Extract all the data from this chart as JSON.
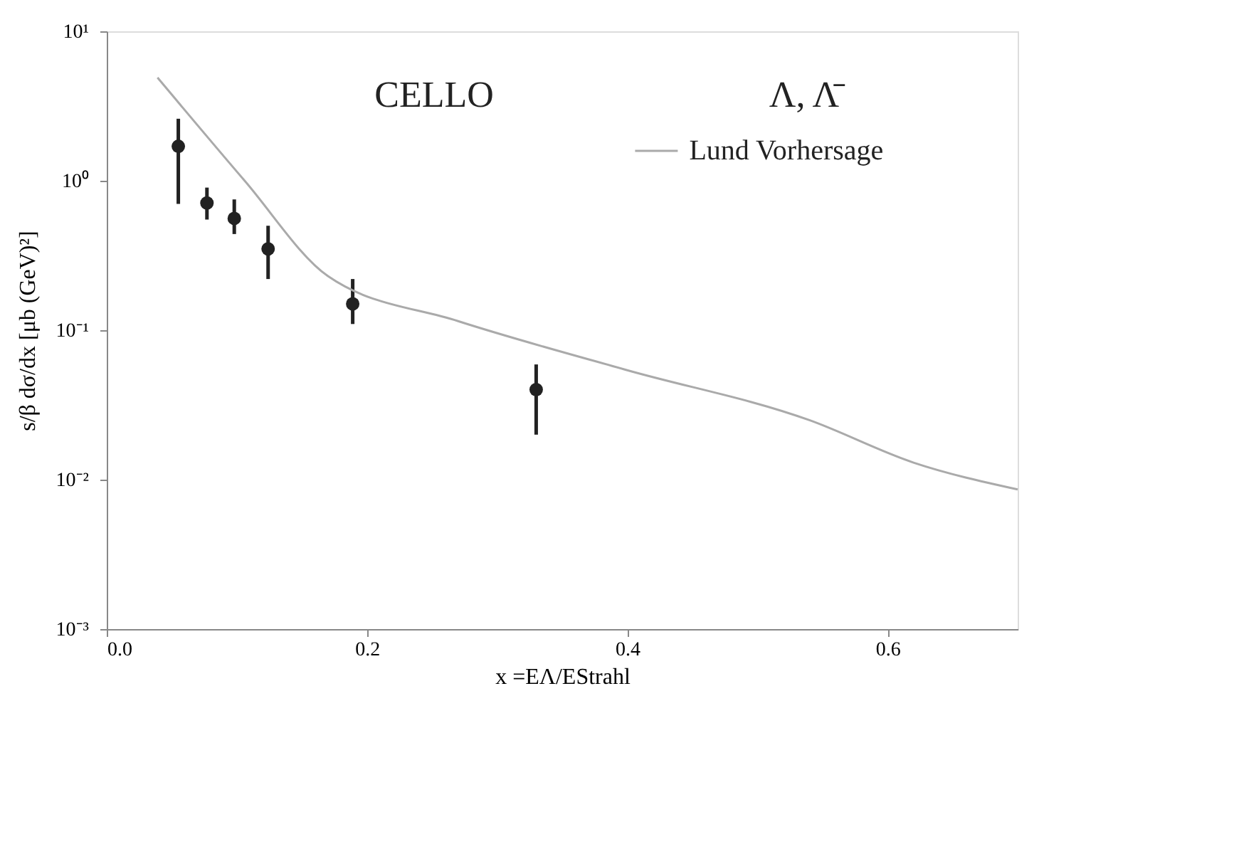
{
  "chart_data": {
    "type": "scatter",
    "xlabel": "x =EΛ/EStrahl",
    "ylabel": "s/β dσ/dx  [μb (GeV)²]",
    "annotations": [
      "CELLO",
      "Λ,  Λ̄"
    ],
    "xlim": [
      0,
      0.7
    ],
    "xticks": [
      {
        "value": 0,
        "label": "0.0"
      },
      0.2,
      0.4,
      0.6
    ],
    "ylim": [
      0.001,
      10
    ],
    "log": true,
    "yticks": [
      {
        "value": 0.001,
        "label": "10⁻³"
      },
      {
        "value": 0.01,
        "label": "10⁻²"
      },
      {
        "value": 0.1,
        "label": "10⁻¹"
      },
      {
        "value": 1,
        "label": "10⁰"
      },
      {
        "value": 10,
        "label": "10¹"
      }
    ],
    "grid": false,
    "legend": "top right",
    "series": [
      {
        "color": "#222222",
        "marker": "circle",
        "x": [
          0.055,
          0.077,
          0.098,
          0.124,
          0.189,
          0.33
        ],
        "values": [
          1.7,
          0.71,
          0.56,
          0.35,
          0.15,
          0.04
        ],
        "errors": [
          [
            0.7,
            2.6
          ],
          [
            0.55,
            0.9
          ],
          [
            0.44,
            0.75
          ],
          [
            0.22,
            0.5
          ],
          [
            0.11,
            0.22
          ],
          [
            0.02,
            0.059
          ]
        ]
      },
      {
        "type": "line",
        "name": "Lund Vorhersage",
        "color": "#aaaaaa",
        "line_style": "solid",
        "x": [
          0.039,
          0.106,
          0.17,
          0.27,
          0.4,
          0.54,
          0.62,
          0.7
        ],
        "values": [
          4.9,
          1.0,
          0.23,
          0.115,
          0.054,
          0.025,
          0.013,
          0.0086
        ]
      }
    ]
  }
}
